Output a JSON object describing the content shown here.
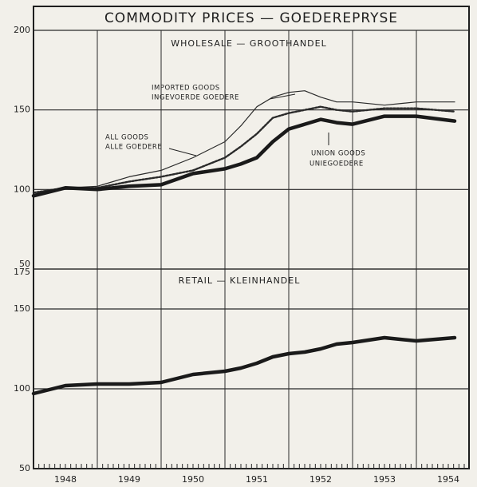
{
  "chart_data": {
    "type": "line",
    "title": "COMMODITY PRICES — GOEDEREPRYSE",
    "xlim": [
      1948,
      1954.825
    ],
    "x_grid": [
      1949,
      1950,
      1951,
      1952,
      1953,
      1954
    ],
    "xticks": [
      {
        "value": 1948.5,
        "label": "1948"
      },
      {
        "value": 1949.5,
        "label": "1949"
      },
      {
        "value": 1950.5,
        "label": "1950"
      },
      {
        "value": 1951.5,
        "label": "1951"
      },
      {
        "value": 1952.5,
        "label": "1952"
      },
      {
        "value": 1953.5,
        "label": "1953"
      },
      {
        "value": 1954.5,
        "label": "1954"
      }
    ],
    "x": [
      1948,
      1948.5,
      1949,
      1949.5,
      1950,
      1950.5,
      1951,
      1951.25,
      1951.5,
      1951.75,
      1952,
      1952.25,
      1952.5,
      1952.75,
      1953,
      1953.5,
      1954,
      1954.6
    ],
    "panels": [
      {
        "label": "WHOLESALE — GROOTHANDEL",
        "ylim": [
          50,
          200
        ],
        "yticks": [
          50,
          100,
          150,
          200
        ],
        "series": [
          {
            "name": "IMPORTED GOODS",
            "name_af": "INGEVOERDE GOEDERE",
            "color": "#2a2a2a",
            "style": "thin",
            "values": [
              97,
              101,
              102,
              108,
              112,
              120,
              130,
              140,
              152,
              158,
              161,
              162,
              158,
              155,
              155,
              153,
              155,
              155
            ]
          },
          {
            "name": "ALL GOODS",
            "name_af": "ALLE GOEDERE",
            "color": "#2a2a2a",
            "style": "dotted",
            "values": [
              98,
              101,
              101,
              105,
              108,
              112,
              120,
              127,
              135,
              145,
              148,
              150,
              152,
              150,
              149,
              151,
              151,
              149
            ]
          },
          {
            "name": "UNION GOODS",
            "name_af": "UNIEGOEDERE",
            "color": "#1a1a1a",
            "style": "thick",
            "values": [
              96,
              101,
              100,
              102,
              103,
              110,
              113,
              116,
              120,
              130,
              138,
              141,
              144,
              142,
              141,
              146,
              146,
              143
            ]
          }
        ]
      },
      {
        "label": "RETAIL — KLEINHANDEL",
        "ylim": [
          50,
          175
        ],
        "yticks": [
          50,
          100,
          150,
          175
        ],
        "series": [
          {
            "name": "RETAIL",
            "color": "#1a1a1a",
            "style": "thick",
            "values": [
              97,
              102,
              103,
              103,
              104,
              109,
              111,
              113,
              116,
              120,
              122,
              123,
              125,
              128,
              129,
              132,
              130,
              132
            ]
          }
        ]
      }
    ]
  }
}
